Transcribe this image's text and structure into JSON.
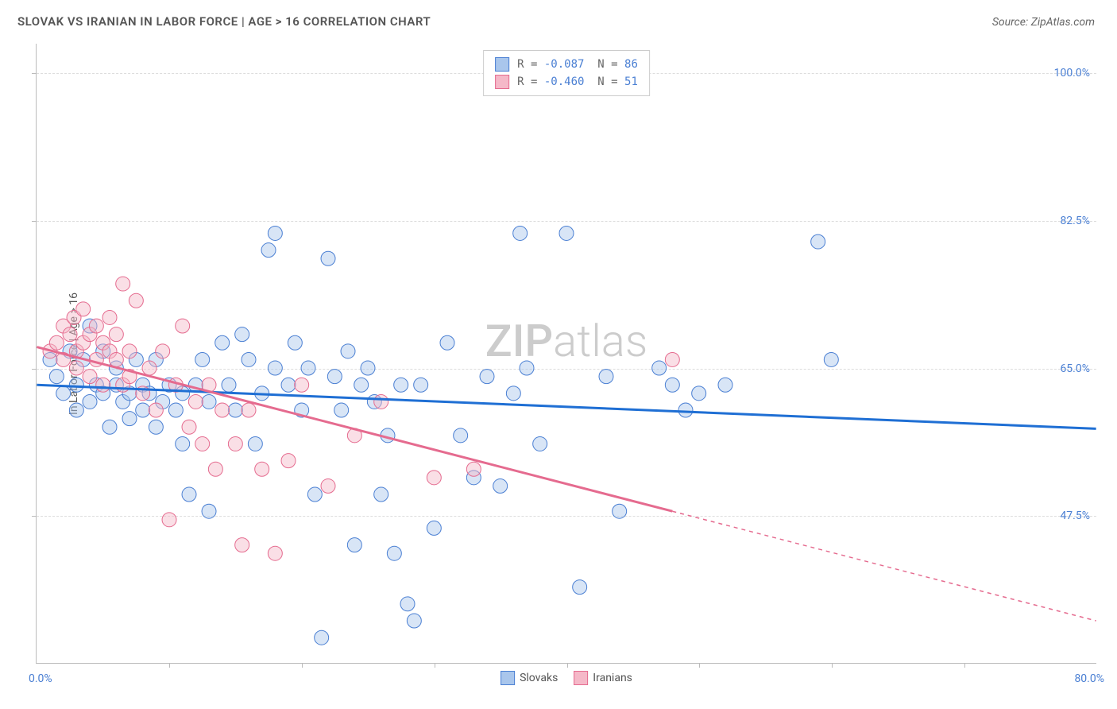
{
  "title": "SLOVAK VS IRANIAN IN LABOR FORCE | AGE > 16 CORRELATION CHART",
  "source_label": "Source: ZipAtlas.com",
  "watermark": {
    "bold": "ZIP",
    "rest": "atlas"
  },
  "y_axis_label": "In Labor Force | Age > 16",
  "chart": {
    "type": "scatter",
    "x_min": 0.0,
    "x_max": 80.0,
    "y_min": 30.0,
    "y_max": 103.5,
    "x_tick_start": 10.0,
    "x_tick_step": 10.0,
    "x_tick_count": 7,
    "y_ticks": [
      47.5,
      65.0,
      82.5,
      100.0
    ],
    "y_tick_labels": [
      "47.5%",
      "65.0%",
      "82.5%",
      "100.0%"
    ],
    "x_start_label": "0.0%",
    "x_end_label": "80.0%",
    "background_color": "#ffffff",
    "grid_color": "#dddddd",
    "marker_radius": 9,
    "marker_opacity": 0.45,
    "series": [
      {
        "name": "Slovaks",
        "color_fill": "#a9c6ec",
        "color_stroke": "#4a7fd3",
        "line_color": "#1f6fd4",
        "line_width": 3,
        "r_label": "R =",
        "r_value": "-0.087",
        "n_label": "N =",
        "n_value": "86",
        "trend": {
          "x1": 0.0,
          "y1": 63.0,
          "x2": 80.0,
          "y2": 57.8,
          "dash_after_x": 80.0
        },
        "points": [
          [
            1,
            66
          ],
          [
            1.5,
            64
          ],
          [
            2,
            62
          ],
          [
            2.5,
            67
          ],
          [
            3,
            63
          ],
          [
            3,
            60
          ],
          [
            3.5,
            66
          ],
          [
            4,
            61
          ],
          [
            4,
            70
          ],
          [
            4.5,
            63
          ],
          [
            5,
            62
          ],
          [
            5,
            67
          ],
          [
            5.5,
            58
          ],
          [
            6,
            63
          ],
          [
            6,
            65
          ],
          [
            6.5,
            61
          ],
          [
            7,
            62
          ],
          [
            7,
            59
          ],
          [
            7.5,
            66
          ],
          [
            8,
            63
          ],
          [
            8,
            60
          ],
          [
            8.5,
            62
          ],
          [
            9,
            66
          ],
          [
            9,
            58
          ],
          [
            9.5,
            61
          ],
          [
            10,
            63
          ],
          [
            10.5,
            60
          ],
          [
            11,
            62
          ],
          [
            11,
            56
          ],
          [
            11.5,
            50
          ],
          [
            12,
            63
          ],
          [
            12.5,
            66
          ],
          [
            13,
            61
          ],
          [
            13,
            48
          ],
          [
            14,
            68
          ],
          [
            14.5,
            63
          ],
          [
            15,
            60
          ],
          [
            15.5,
            69
          ],
          [
            16,
            66
          ],
          [
            16.5,
            56
          ],
          [
            17,
            62
          ],
          [
            17.5,
            79
          ],
          [
            18,
            81
          ],
          [
            18,
            65
          ],
          [
            19,
            63
          ],
          [
            19.5,
            68
          ],
          [
            20,
            60
          ],
          [
            20.5,
            65
          ],
          [
            21,
            50
          ],
          [
            21.5,
            33
          ],
          [
            22,
            78
          ],
          [
            22.5,
            64
          ],
          [
            23,
            60
          ],
          [
            23.5,
            67
          ],
          [
            24,
            44
          ],
          [
            24.5,
            63
          ],
          [
            25,
            65
          ],
          [
            25.5,
            61
          ],
          [
            26,
            50
          ],
          [
            26.5,
            57
          ],
          [
            27,
            43
          ],
          [
            27.5,
            63
          ],
          [
            28,
            37
          ],
          [
            28.5,
            35
          ],
          [
            29,
            63
          ],
          [
            30,
            46
          ],
          [
            31,
            68
          ],
          [
            32,
            57
          ],
          [
            33,
            52
          ],
          [
            34,
            64
          ],
          [
            35,
            51
          ],
          [
            36,
            62
          ],
          [
            36.5,
            81
          ],
          [
            37,
            65
          ],
          [
            38,
            56
          ],
          [
            40,
            81
          ],
          [
            41,
            39
          ],
          [
            43,
            64
          ],
          [
            44,
            48
          ],
          [
            47,
            65
          ],
          [
            48,
            63
          ],
          [
            49,
            60
          ],
          [
            50,
            62
          ],
          [
            52,
            63
          ],
          [
            59,
            80
          ],
          [
            60,
            66
          ]
        ]
      },
      {
        "name": "Iranians",
        "color_fill": "#f5b8c8",
        "color_stroke": "#e56b8f",
        "line_color": "#e56b8f",
        "line_width": 3,
        "r_label": "R =",
        "r_value": "-0.460",
        "n_label": "N =",
        "n_value": "51",
        "trend": {
          "x1": 0.0,
          "y1": 67.5,
          "x2": 48.0,
          "y2": 48.0,
          "dash_after_x": 48.0,
          "x3": 80.0,
          "y3": 35.0
        },
        "points": [
          [
            1,
            67
          ],
          [
            1.5,
            68
          ],
          [
            2,
            70
          ],
          [
            2,
            66
          ],
          [
            2.5,
            69
          ],
          [
            2.8,
            71
          ],
          [
            3,
            67
          ],
          [
            3,
            65
          ],
          [
            3.5,
            68
          ],
          [
            3.5,
            72
          ],
          [
            4,
            69
          ],
          [
            4,
            64
          ],
          [
            4.5,
            70
          ],
          [
            4.5,
            66
          ],
          [
            5,
            68
          ],
          [
            5,
            63
          ],
          [
            5.5,
            67
          ],
          [
            5.5,
            71
          ],
          [
            6,
            66
          ],
          [
            6,
            69
          ],
          [
            6.5,
            63
          ],
          [
            6.5,
            75
          ],
          [
            7,
            67
          ],
          [
            7,
            64
          ],
          [
            7.5,
            73
          ],
          [
            8,
            62
          ],
          [
            8.5,
            65
          ],
          [
            9,
            60
          ],
          [
            9.5,
            67
          ],
          [
            10,
            47
          ],
          [
            10.5,
            63
          ],
          [
            11,
            70
          ],
          [
            11.5,
            58
          ],
          [
            12,
            61
          ],
          [
            12.5,
            56
          ],
          [
            13,
            63
          ],
          [
            13.5,
            53
          ],
          [
            14,
            60
          ],
          [
            15,
            56
          ],
          [
            15.5,
            44
          ],
          [
            16,
            60
          ],
          [
            17,
            53
          ],
          [
            18,
            43
          ],
          [
            19,
            54
          ],
          [
            20,
            63
          ],
          [
            22,
            51
          ],
          [
            24,
            57
          ],
          [
            26,
            61
          ],
          [
            30,
            52
          ],
          [
            33,
            53
          ],
          [
            48,
            66
          ]
        ]
      }
    ]
  },
  "legend_bottom": [
    {
      "label": "Slovaks",
      "fill": "#a9c6ec",
      "stroke": "#4a7fd3"
    },
    {
      "label": "Iranians",
      "fill": "#f5b8c8",
      "stroke": "#e56b8f"
    }
  ]
}
